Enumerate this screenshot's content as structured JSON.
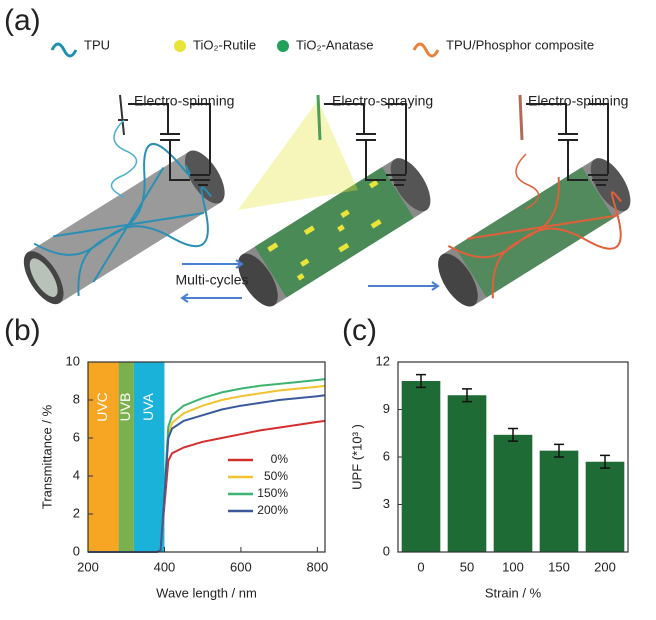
{
  "panel_labels": [
    "(a)",
    "(b)",
    "(c)"
  ],
  "panel_a": {
    "legend": [
      {
        "label": "TPU"
      },
      {
        "label": "TiO₂-Rutile"
      },
      {
        "label": "TiO₂-Anatase"
      },
      {
        "label": "TPU/Phosphor composite"
      }
    ],
    "steps": [
      "Electro-spinning",
      "Electro-spraying",
      "Electro-spinning"
    ],
    "cycle_label": "Multi-cycles"
  },
  "chart_data": [
    {
      "type": "line",
      "xlabel": "Wave length / nm",
      "ylabel": "Transmittance / %",
      "x": [
        200,
        380,
        390,
        400,
        410,
        420,
        450,
        500,
        550,
        600,
        650,
        700,
        750,
        800,
        820
      ],
      "xlim": [
        200,
        820
      ],
      "xticks": [
        200,
        400,
        600,
        800
      ],
      "ylim": [
        0,
        10
      ],
      "yticks": [
        0,
        2,
        4,
        6,
        8,
        10
      ],
      "bands": [
        {
          "label": "UVC",
          "range": [
            200,
            280
          ],
          "color": "#f6a623"
        },
        {
          "label": "UVB",
          "range": [
            280,
            320
          ],
          "color": "#7bb04f"
        },
        {
          "label": "UVA",
          "range": [
            320,
            400
          ],
          "color": "#1bb2d9"
        }
      ],
      "series": [
        {
          "name": "0%",
          "color": "#d32f2f",
          "values": [
            0,
            0,
            0.1,
            2.5,
            4.8,
            5.2,
            5.5,
            5.8,
            6.0,
            6.2,
            6.4,
            6.55,
            6.7,
            6.85,
            6.9
          ]
        },
        {
          "name": "50%",
          "color": "#f2c230",
          "values": [
            0,
            0,
            0.1,
            3,
            6.2,
            6.8,
            7.3,
            7.7,
            8.0,
            8.2,
            8.35,
            8.5,
            8.6,
            8.7,
            8.75
          ]
        },
        {
          "name": "150%",
          "color": "#3cb371",
          "values": [
            0,
            0,
            0.1,
            3.2,
            6.6,
            7.2,
            7.7,
            8.1,
            8.4,
            8.6,
            8.75,
            8.85,
            8.95,
            9.05,
            9.1
          ]
        },
        {
          "name": "200%",
          "color": "#3a5a9c",
          "values": [
            0,
            0,
            0.1,
            3,
            6.0,
            6.5,
            6.9,
            7.2,
            7.5,
            7.7,
            7.85,
            8.0,
            8.1,
            8.2,
            8.25
          ]
        }
      ]
    },
    {
      "type": "bar",
      "xlabel": "Strain / %",
      "ylabel": "UPF  (*10³ )",
      "categories": [
        "0",
        "50",
        "100",
        "150",
        "200"
      ],
      "values": [
        10.8,
        9.9,
        7.4,
        6.4,
        5.7
      ],
      "errors": [
        0.4,
        0.4,
        0.4,
        0.4,
        0.4
      ],
      "color": "#1e6b35",
      "ylim": [
        0,
        12
      ],
      "yticks": [
        0,
        3,
        6,
        9,
        12
      ]
    }
  ]
}
